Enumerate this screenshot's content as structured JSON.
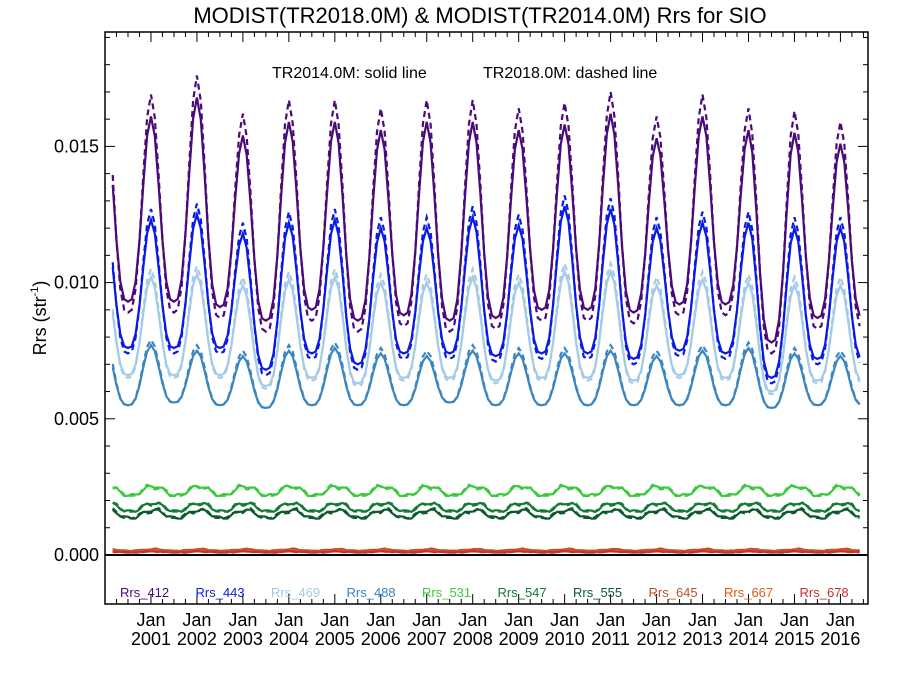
{
  "chart_data": {
    "type": "line",
    "title": "MODIST(TR2018.0M) & MODIST(TR2014.0M)  Rrs for SIO",
    "ylabel_main": "Rrs (str",
    "ylabel_sup": "-1",
    "ylabel_close": ")",
    "xlabel": "",
    "annotation_solid": "TR2014.0M: solid line",
    "annotation_dashed": "TR2018.0M: dashed line",
    "xlim": [
      2000.0,
      2016.6
    ],
    "ylim": [
      -0.0018,
      0.0192
    ],
    "zero_line": 0.0,
    "grid": false,
    "legend_placement": "bottom, inside plot",
    "y_ticks": [
      {
        "value": 0.0,
        "label": "0.000"
      },
      {
        "value": 0.005,
        "label": "0.005"
      },
      {
        "value": 0.01,
        "label": "0.010"
      },
      {
        "value": 0.015,
        "label": "0.015"
      }
    ],
    "x_tick_month": "Jan",
    "x_ticks": [
      {
        "year": 2001,
        "label": "2001"
      },
      {
        "year": 2002,
        "label": "2002"
      },
      {
        "year": 2003,
        "label": "2003"
      },
      {
        "year": 2004,
        "label": "2004"
      },
      {
        "year": 2005,
        "label": "2005"
      },
      {
        "year": 2006,
        "label": "2006"
      },
      {
        "year": 2007,
        "label": "2007"
      },
      {
        "year": 2008,
        "label": "2008"
      },
      {
        "year": 2009,
        "label": "2009"
      },
      {
        "year": 2010,
        "label": "2010"
      },
      {
        "year": 2011,
        "label": "2011"
      },
      {
        "year": 2012,
        "label": "2012"
      },
      {
        "year": 2013,
        "label": "2013"
      },
      {
        "year": 2014,
        "label": "2014"
      },
      {
        "year": 2015,
        "label": "2015"
      },
      {
        "year": 2016,
        "label": "2016"
      }
    ],
    "time_start": "2000-03",
    "time_end": "2016-06",
    "series": [
      {
        "name": "Rrs_412",
        "color": "#4b0a7a",
        "peak": [
          0.0161,
          0.0168,
          0.0154,
          0.0159,
          0.0159,
          0.0156,
          0.0159,
          0.0159,
          0.0156,
          0.0158,
          0.0162,
          0.0153,
          0.0161,
          0.0156,
          0.0155,
          0.0151
        ],
        "trough": [
          0.0093,
          0.0093,
          0.0091,
          0.0086,
          0.009,
          0.0086,
          0.0088,
          0.0086,
          0.0087,
          0.009,
          0.009,
          0.0089,
          0.0092,
          0.0092,
          0.0078,
          0.0087
        ],
        "dashed_peak_offset": 0.0008,
        "dashed_trough_offset": 0.0004
      },
      {
        "name": "Rrs_443",
        "color": "#0a1ae6",
        "peak": [
          0.0123,
          0.0125,
          0.0118,
          0.0122,
          0.0123,
          0.012,
          0.012,
          0.0124,
          0.0121,
          0.0128,
          0.0127,
          0.012,
          0.0122,
          0.0122,
          0.012,
          0.012
        ],
        "trough": [
          0.0076,
          0.0076,
          0.0076,
          0.0068,
          0.0074,
          0.007,
          0.0074,
          0.0074,
          0.0073,
          0.0074,
          0.0074,
          0.0072,
          0.0075,
          0.0074,
          0.0065,
          0.0072
        ],
        "dashed_peak_offset": 0.0004,
        "dashed_trough_offset": 0.0002
      },
      {
        "name": "Rrs_469",
        "color": "#a3cbe6",
        "peak": [
          0.0102,
          0.0103,
          0.0099,
          0.0101,
          0.0102,
          0.01,
          0.01,
          0.0102,
          0.01,
          0.0104,
          0.0104,
          0.0099,
          0.0101,
          0.01,
          0.0099,
          0.0099
        ],
        "trough": [
          0.0066,
          0.0066,
          0.0066,
          0.0062,
          0.0065,
          0.0063,
          0.0065,
          0.0065,
          0.0064,
          0.0065,
          0.0065,
          0.0064,
          0.0066,
          0.0065,
          0.006,
          0.0064
        ],
        "dashed_peak_offset": 0.0003,
        "dashed_trough_offset": 0.0001
      },
      {
        "name": "Rrs_488",
        "color": "#3a86c0",
        "peak": [
          0.0077,
          0.0075,
          0.0073,
          0.0075,
          0.0076,
          0.0074,
          0.0073,
          0.0075,
          0.0074,
          0.0074,
          0.0075,
          0.0073,
          0.0075,
          0.0076,
          0.0074,
          0.0073
        ],
        "trough": [
          0.0055,
          0.0056,
          0.0055,
          0.0054,
          0.0055,
          0.0055,
          0.0055,
          0.0056,
          0.0055,
          0.0055,
          0.0055,
          0.0055,
          0.0055,
          0.0055,
          0.0054,
          0.0055
        ],
        "dashed_peak_offset": 0.0002,
        "dashed_trough_offset": 0.0
      },
      {
        "name": "Rrs_531",
        "color": "#3ec83e",
        "base": 0.00235,
        "amplitude": 0.00018,
        "dashed_offset": 6e-05
      },
      {
        "name": "Rrs_547",
        "color": "#137a3a",
        "base": 0.00175,
        "amplitude": 0.00016,
        "dashed_offset": 5e-05
      },
      {
        "name": "Rrs_555",
        "color": "#0c5a2c",
        "base": 0.0015,
        "amplitude": 0.00015,
        "dashed_offset": 6e-05
      },
      {
        "name": "Rrs_645",
        "color": "#b8542a",
        "base": 0.00018,
        "amplitude": 3e-05,
        "dashed_offset": 2e-05
      },
      {
        "name": "Rrs_667",
        "color": "#e05a14",
        "base": 0.00013,
        "amplitude": 3e-05,
        "dashed_offset": 2e-05
      },
      {
        "name": "Rrs_678",
        "color": "#c43232",
        "base": 0.00011,
        "amplitude": 2e-05,
        "dashed_offset": 2e-05
      }
    ]
  }
}
